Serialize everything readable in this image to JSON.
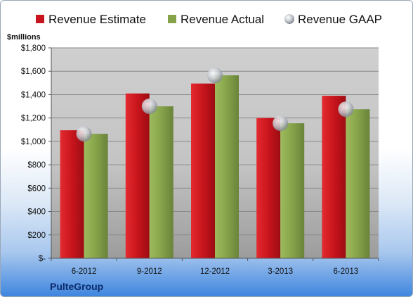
{
  "chart_data": {
    "type": "bar",
    "unit_label": "$millions",
    "categories": [
      "6-2012",
      "9-2012",
      "12-2012",
      "3-2013",
      "6-2013"
    ],
    "series": [
      {
        "name": "Revenue Estimate",
        "kind": "bar",
        "color": "#c8141c",
        "values": [
          1095,
          1410,
          1495,
          1200,
          1390
        ]
      },
      {
        "name": "Revenue Actual",
        "kind": "bar",
        "color": "#86a34a",
        "values": [
          1065,
          1300,
          1565,
          1155,
          1275
        ]
      },
      {
        "name": "Revenue GAAP",
        "kind": "marker",
        "color": "#b8bcc4",
        "values": [
          1065,
          1300,
          1565,
          1155,
          1275
        ]
      }
    ],
    "y_ticks": [
      "$-",
      "$200",
      "$400",
      "$600",
      "$800",
      "$1,000",
      "$1,200",
      "$1,400",
      "$1,600",
      "$1,800"
    ],
    "ylim": [
      0,
      1800
    ],
    "grid": true,
    "legend": "top"
  },
  "footer": {
    "company": "PulteGroup"
  }
}
